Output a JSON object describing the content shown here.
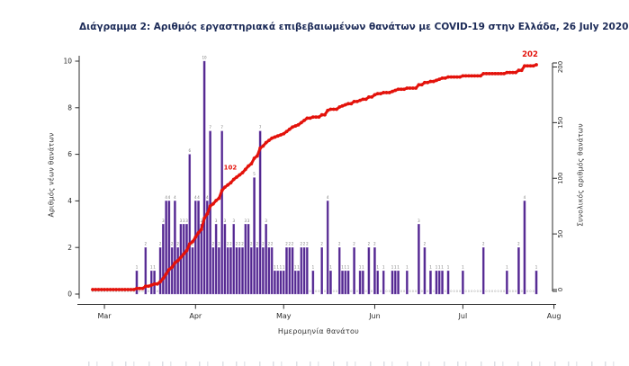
{
  "title": "Διάγραμμα 2: Αριθμός εργαστηριακά επιβεβαιωμένων θανάτων με COVID-19 στην Ελλάδα, 26 July 2020",
  "colors": {
    "bar": "#52278f",
    "bar_edge": "#8b63bb",
    "line": "#e3120b",
    "axis": "#2b2b2b",
    "title": "#1b2a57",
    "bar_label": "#777777",
    "zero_label": "#999999"
  },
  "chart_data": {
    "type": "bar",
    "title": "Διάγραμμα 2: Αριθμός εργαστηριακά επιβεβαιωμένων θανάτων με COVID-19 στην Ελλάδα, 26 July 2020",
    "xlabel": "Ημερομηνία θανάτου",
    "ylabel_left": "Αριθμός νέων θανάτων",
    "ylabel_right": "Συνολικός αριθμός θανάτων",
    "x_start_date": "26 Feb 2020",
    "x_end_date": "26 Jul 2020",
    "x_tick_labels": [
      "Mar",
      "Apr",
      "May",
      "Jun",
      "Jul",
      "Aug"
    ],
    "yticks_left": [
      0,
      2,
      4,
      6,
      8,
      10
    ],
    "ylim_left": [
      0,
      10
    ],
    "yticks_right": [
      0,
      50,
      100,
      150,
      200
    ],
    "ylim_right": [
      0,
      200
    ],
    "grid": false,
    "legend": "none",
    "total_deaths": 202,
    "series": [
      {
        "name": "daily_deaths",
        "type": "bar",
        "values": [
          0,
          0,
          0,
          0,
          0,
          0,
          0,
          0,
          0,
          0,
          0,
          0,
          0,
          0,
          0,
          1,
          0,
          0,
          2,
          0,
          1,
          1,
          0,
          2,
          3,
          4,
          4,
          2,
          4,
          2,
          3,
          3,
          3,
          6,
          2,
          4,
          4,
          3,
          10,
          4,
          7,
          2,
          3,
          2,
          7,
          3,
          2,
          2,
          3,
          2,
          2,
          2,
          3,
          3,
          2,
          5,
          2,
          7,
          2,
          3,
          2,
          2,
          1,
          1,
          1,
          1,
          2,
          2,
          2,
          1,
          1,
          2,
          2,
          2,
          0,
          1,
          0,
          0,
          2,
          0,
          4,
          1,
          0,
          0,
          2,
          1,
          1,
          1,
          0,
          2,
          0,
          1,
          1,
          0,
          2,
          0,
          2,
          1,
          0,
          1,
          0,
          0,
          1,
          1,
          1,
          0,
          0,
          1,
          0,
          0,
          0,
          3,
          0,
          2,
          0,
          1,
          0,
          1,
          1,
          1,
          0,
          1,
          0,
          0,
          0,
          0,
          1,
          0,
          0,
          0,
          0,
          0,
          0,
          2,
          0,
          0,
          0,
          0,
          0,
          0,
          0,
          1,
          0,
          0,
          0,
          2,
          0,
          4,
          0,
          0,
          0,
          1
        ]
      },
      {
        "name": "cumulative_deaths",
        "type": "line",
        "derived_from": "cumulative sum of daily_deaths",
        "final_value": 202
      }
    ],
    "annotations": [
      {
        "text": "102",
        "at_cumulative": 102
      },
      {
        "text": "202",
        "at_cumulative": 202
      }
    ]
  }
}
